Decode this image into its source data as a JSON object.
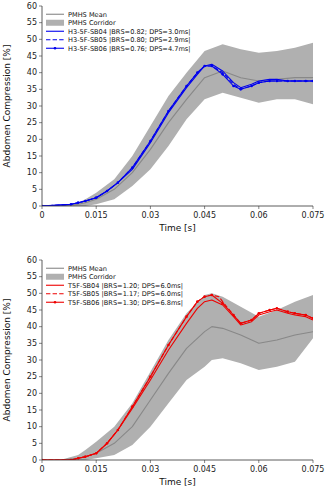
{
  "chart_data": [
    {
      "type": "line",
      "xlabel": "Time [s]",
      "ylabel": "Abdomen Compression [%]",
      "xlim": [
        0,
        0.075
      ],
      "ylim": [
        0,
        60
      ],
      "xticks": [
        0,
        0.015,
        0.03,
        0.045,
        0.06,
        0.075
      ],
      "yticks": [
        0,
        5,
        10,
        15,
        20,
        25,
        30,
        35,
        40,
        45,
        50,
        55,
        60
      ],
      "legend": "upper left",
      "grid": false,
      "series": [
        {
          "name": "PMHS Mean",
          "type": "line",
          "color": "#888888",
          "line_style": "solid",
          "x": [
            0,
            0.005,
            0.01,
            0.012,
            0.015,
            0.02,
            0.025,
            0.03,
            0.035,
            0.04,
            0.045,
            0.05,
            0.055,
            0.06,
            0.065,
            0.07,
            0.075
          ],
          "values": [
            0,
            0.0,
            0.5,
            1.0,
            2.0,
            5.0,
            10.0,
            17.0,
            25.0,
            32.0,
            38.5,
            40.5,
            38.5,
            37.5,
            38.0,
            38.5,
            38.5
          ]
        },
        {
          "name": "PMHS Corridor",
          "type": "band",
          "color": "#b0b0b0",
          "x": [
            0,
            0.005,
            0.01,
            0.012,
            0.015,
            0.02,
            0.025,
            0.03,
            0.035,
            0.04,
            0.045,
            0.05,
            0.055,
            0.06,
            0.065,
            0.07,
            0.075
          ],
          "lower": [
            0,
            0.0,
            0.0,
            0.0,
            0.5,
            2.0,
            6.0,
            11.0,
            18.0,
            26.0,
            32.0,
            34.0,
            32.5,
            31.0,
            32.0,
            32.0,
            30.5
          ],
          "upper": [
            0,
            0.0,
            1.0,
            2.0,
            4.0,
            8.0,
            15.0,
            24.0,
            33.0,
            40.0,
            46.5,
            48.5,
            47.0,
            46.0,
            46.5,
            47.5,
            49.0
          ]
        },
        {
          "name": "H3-5F-SB04 |BRS=0.82; DPS=3.0ms|",
          "type": "line",
          "color": "#0000ee",
          "line_style": "solid",
          "x": [
            0,
            0.008,
            0.01,
            0.012,
            0.015,
            0.018,
            0.021,
            0.025,
            0.03,
            0.035,
            0.04,
            0.043,
            0.045,
            0.047,
            0.05,
            0.053,
            0.055,
            0.058,
            0.06,
            0.063,
            0.065,
            0.068,
            0.07,
            0.073,
            0.075
          ],
          "values": [
            0,
            0.5,
            1.0,
            1.5,
            2.5,
            4.5,
            7.0,
            11.0,
            19.0,
            28.0,
            35.5,
            39.5,
            42.0,
            42.5,
            40.5,
            37.0,
            35.5,
            36.5,
            37.5,
            38.0,
            38.0,
            37.5,
            37.5,
            37.5,
            37.5
          ]
        },
        {
          "name": "H3-5F-SB05 |BRS=0.80; DPS=2.9ms|",
          "type": "line",
          "color": "#0000ee",
          "line_style": "dashed",
          "x": [
            0,
            0.008,
            0.01,
            0.012,
            0.015,
            0.018,
            0.021,
            0.025,
            0.03,
            0.035,
            0.04,
            0.043,
            0.045,
            0.047,
            0.05,
            0.053,
            0.055,
            0.058,
            0.06,
            0.063,
            0.065,
            0.068,
            0.07,
            0.073,
            0.075
          ],
          "values": [
            0,
            0.5,
            1.0,
            1.5,
            2.5,
            4.5,
            7.0,
            11.5,
            19.5,
            28.5,
            36.0,
            40.0,
            42.0,
            42.0,
            40.0,
            36.5,
            35.0,
            36.0,
            37.0,
            37.5,
            37.5,
            37.5,
            37.5,
            37.5,
            37.5
          ]
        },
        {
          "name": "H3-5F-SB06 |BRS=0.76; DPS=4.7ms|",
          "type": "line",
          "color": "#0000ee",
          "line_style": "solid",
          "marker": "circle",
          "x": [
            0,
            0.008,
            0.01,
            0.012,
            0.015,
            0.018,
            0.021,
            0.025,
            0.03,
            0.035,
            0.04,
            0.043,
            0.045,
            0.047,
            0.05,
            0.053,
            0.055,
            0.058,
            0.06,
            0.063,
            0.065,
            0.068,
            0.07,
            0.073,
            0.075
          ],
          "values": [
            0,
            0.5,
            1.0,
            1.5,
            2.5,
            4.5,
            7.0,
            11.5,
            19.5,
            28.5,
            36.0,
            40.0,
            42.0,
            42.0,
            39.5,
            36.0,
            35.0,
            36.0,
            37.0,
            37.5,
            37.5,
            37.5,
            37.5,
            37.5,
            37.5
          ]
        }
      ]
    },
    {
      "type": "line",
      "xlabel": "Time [s]",
      "ylabel": "Abdomen Compression [%]",
      "xlim": [
        0,
        0.075
      ],
      "ylim": [
        0,
        60
      ],
      "xticks": [
        0,
        0.015,
        0.03,
        0.045,
        0.06,
        0.075
      ],
      "yticks": [
        0,
        5,
        10,
        15,
        20,
        25,
        30,
        35,
        40,
        45,
        50,
        55,
        60
      ],
      "legend": "upper left",
      "grid": false,
      "series": [
        {
          "name": "PMHS Mean",
          "type": "line",
          "color": "#888888",
          "line_style": "solid",
          "x": [
            0,
            0.005,
            0.01,
            0.012,
            0.015,
            0.02,
            0.025,
            0.03,
            0.035,
            0.04,
            0.045,
            0.047,
            0.05,
            0.055,
            0.06,
            0.065,
            0.07,
            0.075
          ],
          "values": [
            0,
            0.0,
            0.5,
            1.0,
            2.0,
            5.0,
            10.0,
            18.0,
            26.0,
            33.5,
            38.5,
            40.0,
            39.5,
            37.5,
            35.0,
            36.0,
            37.5,
            38.5
          ]
        },
        {
          "name": "PMHS Corridor",
          "type": "band",
          "color": "#b0b0b0",
          "x": [
            0,
            0.005,
            0.01,
            0.012,
            0.015,
            0.02,
            0.025,
            0.03,
            0.035,
            0.04,
            0.045,
            0.047,
            0.05,
            0.055,
            0.06,
            0.065,
            0.07,
            0.075
          ],
          "lower": [
            0,
            0.0,
            0.0,
            0.0,
            0.5,
            1.5,
            4.5,
            10.0,
            17.0,
            24.0,
            28.0,
            30.0,
            30.5,
            29.0,
            27.0,
            28.0,
            29.5,
            36.5
          ],
          "upper": [
            0,
            0.0,
            1.5,
            3.0,
            5.5,
            10.0,
            17.0,
            26.5,
            36.0,
            44.0,
            49.5,
            50.0,
            49.0,
            46.0,
            43.0,
            45.0,
            47.5,
            49.5
          ]
        },
        {
          "name": "T5F-SB04 |BRS=1.20; DPS=6.0ms|",
          "type": "line",
          "color": "#ee0000",
          "line_style": "solid",
          "x": [
            0,
            0.008,
            0.01,
            0.012,
            0.015,
            0.018,
            0.021,
            0.025,
            0.03,
            0.035,
            0.04,
            0.043,
            0.045,
            0.047,
            0.05,
            0.053,
            0.055,
            0.058,
            0.06,
            0.063,
            0.065,
            0.068,
            0.07,
            0.073,
            0.075
          ],
          "values": [
            0,
            0.0,
            0.5,
            1.0,
            2.0,
            5.0,
            9.0,
            15.5,
            24.0,
            33.0,
            41.0,
            45.5,
            47.5,
            48.0,
            46.5,
            43.0,
            40.5,
            41.5,
            43.5,
            44.5,
            45.0,
            44.0,
            43.5,
            43.0,
            42.0
          ]
        },
        {
          "name": "T5F-SB05 |BRS=1.17; DPS=6.0ms|",
          "type": "line",
          "color": "#ee0000",
          "line_style": "dashed",
          "x": [
            0,
            0.008,
            0.01,
            0.012,
            0.015,
            0.018,
            0.021,
            0.025,
            0.03,
            0.035,
            0.04,
            0.043,
            0.045,
            0.047,
            0.049,
            0.05,
            0.053,
            0.055,
            0.058,
            0.06,
            0.063,
            0.065,
            0.068,
            0.07,
            0.073,
            0.075
          ],
          "values": [
            0,
            0.0,
            0.5,
            1.0,
            2.0,
            5.0,
            9.0,
            16.0,
            25.0,
            34.5,
            43.0,
            47.5,
            49.0,
            49.5,
            49.0,
            47.5,
            43.5,
            41.0,
            42.0,
            44.0,
            45.0,
            45.5,
            44.5,
            44.0,
            43.5,
            42.5
          ]
        },
        {
          "name": "T5F-SB06 |BRS=1.30; DPS=6.8ms|",
          "type": "line",
          "color": "#ee0000",
          "line_style": "solid",
          "marker": "circle",
          "x": [
            0,
            0.008,
            0.01,
            0.012,
            0.015,
            0.018,
            0.021,
            0.025,
            0.03,
            0.035,
            0.04,
            0.043,
            0.045,
            0.047,
            0.05,
            0.053,
            0.055,
            0.058,
            0.06,
            0.063,
            0.065,
            0.068,
            0.07,
            0.073,
            0.075
          ],
          "values": [
            0,
            0.0,
            0.5,
            1.0,
            2.0,
            5.0,
            9.0,
            16.0,
            25.0,
            34.5,
            43.0,
            47.5,
            49.0,
            49.5,
            47.0,
            43.5,
            41.0,
            42.0,
            44.0,
            45.0,
            45.5,
            44.5,
            44.0,
            43.5,
            42.5
          ]
        }
      ]
    }
  ]
}
